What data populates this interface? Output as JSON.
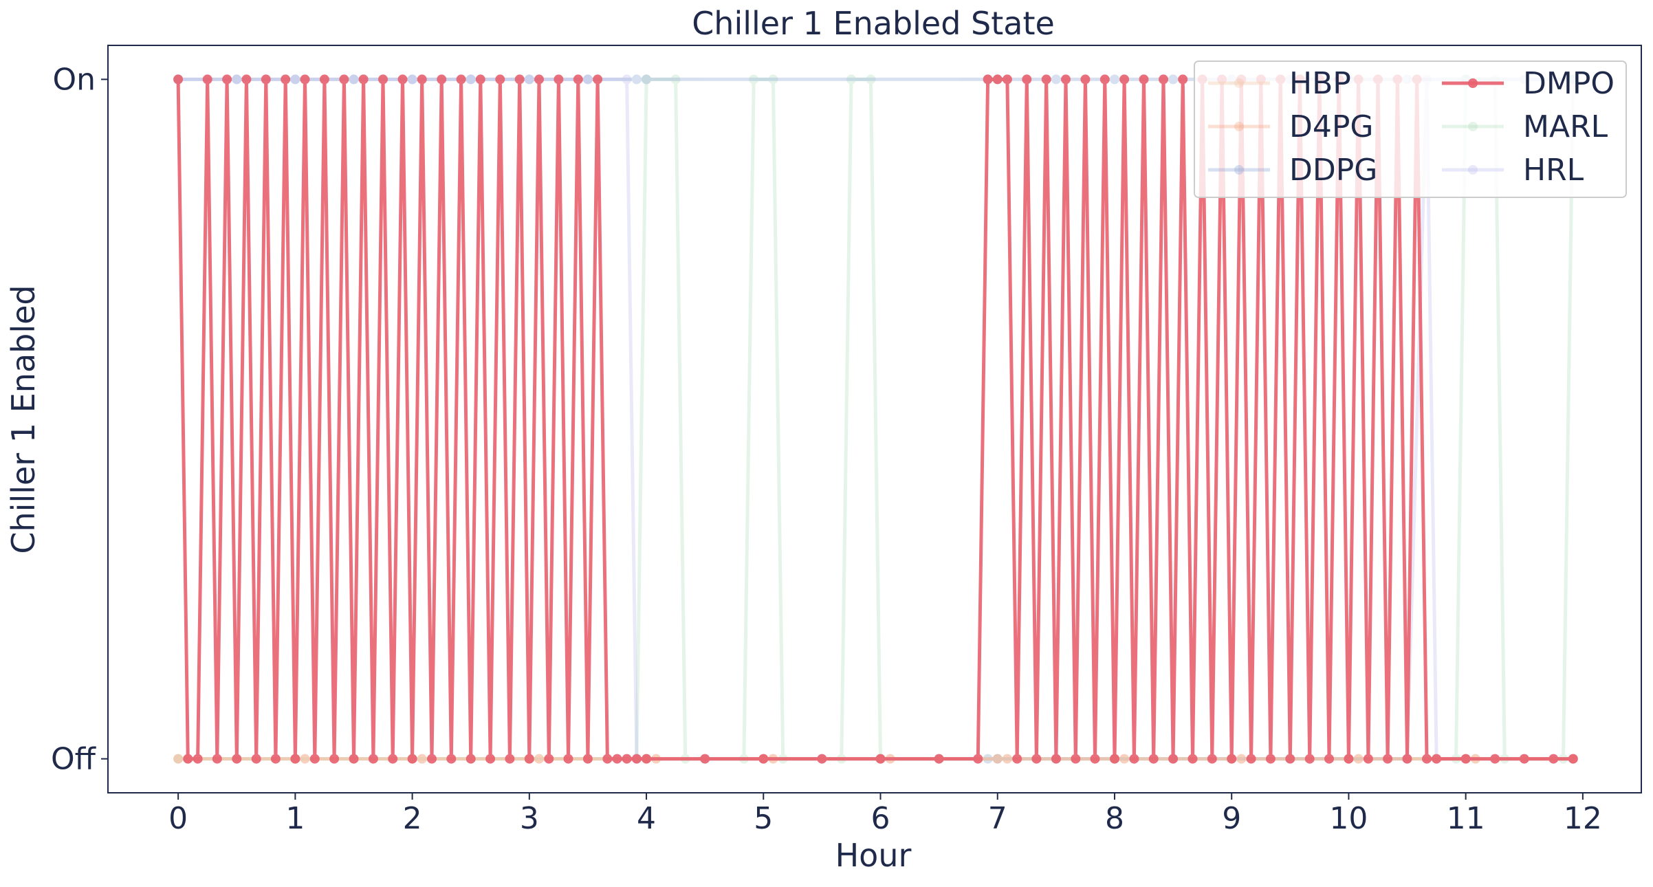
{
  "chart_data": {
    "type": "line",
    "title": "Chiller 1 Enabled State",
    "xlabel": "Hour",
    "ylabel": "Chiller 1 Enabled",
    "xlim": [
      -0.6,
      12.5
    ],
    "ylim": [
      -0.05,
      1.05
    ],
    "xticks": [
      0,
      1,
      2,
      3,
      4,
      5,
      6,
      7,
      8,
      9,
      10,
      11,
      12
    ],
    "yticks": [
      {
        "value": 0,
        "label": "Off"
      },
      {
        "value": 1,
        "label": "On"
      }
    ],
    "grid": false,
    "legend": {
      "placement": "top-right",
      "columns": 2,
      "entries": [
        "HBP",
        "D4PG",
        "DDPG",
        "DMPO",
        "MARL",
        "HRL"
      ]
    },
    "series": [
      {
        "name": "HBP",
        "color": "#f2c6a2",
        "opacity": 0.35,
        "x": [
          0,
          0.083,
          1.0,
          1.083,
          2.0,
          2.083,
          3.0,
          3.083,
          4.0,
          4.083,
          5.0,
          5.083,
          6.0,
          6.083,
          7.0,
          7.083,
          8.0,
          8.083,
          9.0,
          9.083,
          10.0,
          10.083,
          11.0,
          11.083,
          11.917
        ],
        "y": [
          0,
          0,
          0,
          0,
          0,
          0,
          0,
          0,
          0,
          0,
          0,
          0,
          0,
          0,
          0,
          0,
          0,
          0,
          0,
          0,
          0,
          0,
          0,
          0,
          0
        ]
      },
      {
        "name": "D4PG",
        "color": "#f4a582",
        "opacity": 0.35,
        "x": [
          0,
          0.083,
          1.0,
          1.083,
          2.0,
          2.083,
          3.0,
          3.083,
          4.0,
          4.083,
          5.0,
          5.083,
          6.0,
          6.083,
          7.0,
          7.083,
          8.0,
          8.083,
          9.0,
          9.083,
          10.0,
          10.083,
          11.0,
          11.083,
          11.917
        ],
        "y": [
          0,
          0,
          0,
          0,
          0,
          0,
          0,
          0,
          0,
          0,
          0,
          0,
          0,
          0,
          0,
          0,
          0,
          0,
          0,
          0,
          0,
          0,
          0,
          0,
          0
        ]
      },
      {
        "name": "DDPG",
        "color": "#8fa8d6",
        "opacity": 0.35,
        "x": [
          0,
          0.5,
          1.0,
          1.5,
          2.0,
          2.5,
          3.0,
          3.5,
          3.917,
          4.0,
          6.917,
          7.0,
          7.5,
          8.0,
          8.5,
          9.0,
          9.5,
          10.0,
          10.5,
          11.0,
          11.5,
          11.917
        ],
        "y": [
          1,
          1,
          1,
          1,
          1,
          1,
          1,
          1,
          1,
          1,
          1,
          1,
          1,
          1,
          1,
          1,
          1,
          1,
          1,
          1,
          1,
          1
        ]
      },
      {
        "name": "DMPO",
        "color": "#e8606e",
        "opacity": 0.9,
        "x": [
          0,
          0.083,
          0.167,
          0.25,
          0.333,
          0.417,
          0.5,
          0.583,
          0.667,
          0.75,
          0.833,
          0.917,
          1.0,
          1.083,
          1.167,
          1.25,
          1.333,
          1.417,
          1.5,
          1.583,
          1.667,
          1.75,
          1.833,
          1.917,
          2.0,
          2.083,
          2.167,
          2.25,
          2.333,
          2.417,
          2.5,
          2.583,
          2.667,
          2.75,
          2.833,
          2.917,
          3.0,
          3.083,
          3.167,
          3.25,
          3.333,
          3.417,
          3.5,
          3.583,
          3.667,
          3.75,
          3.833,
          3.917,
          4.0,
          4.5,
          5.0,
          5.5,
          6.0,
          6.5,
          6.833,
          6.917,
          7.0,
          7.083,
          7.167,
          7.25,
          7.333,
          7.417,
          7.5,
          7.583,
          7.667,
          7.75,
          7.833,
          7.917,
          8.0,
          8.083,
          8.167,
          8.25,
          8.333,
          8.417,
          8.5,
          8.583,
          8.667,
          8.75,
          8.833,
          8.917,
          9.0,
          9.083,
          9.167,
          9.25,
          9.333,
          9.417,
          9.5,
          9.583,
          9.667,
          9.75,
          9.833,
          9.917,
          10.0,
          10.083,
          10.167,
          10.25,
          10.333,
          10.417,
          10.5,
          10.583,
          10.667,
          10.75,
          11.0,
          11.25,
          11.5,
          11.75,
          11.917
        ],
        "y": [
          1,
          0,
          0,
          1,
          0,
          1,
          0,
          1,
          0,
          1,
          0,
          1,
          0,
          1,
          0,
          1,
          0,
          1,
          0,
          1,
          0,
          1,
          0,
          1,
          0,
          1,
          0,
          1,
          0,
          1,
          0,
          1,
          0,
          1,
          0,
          1,
          0,
          1,
          0,
          1,
          0,
          1,
          0,
          1,
          0,
          0,
          0,
          0,
          0,
          0,
          0,
          0,
          0,
          0,
          0,
          1,
          1,
          1,
          0,
          1,
          0,
          1,
          0,
          1,
          0,
          1,
          0,
          1,
          0,
          1,
          0,
          1,
          0,
          1,
          0,
          1,
          0,
          1,
          0,
          1,
          0,
          1,
          0,
          1,
          0,
          1,
          0,
          1,
          0,
          1,
          0,
          1,
          0,
          1,
          0,
          1,
          0,
          1,
          0,
          1,
          0,
          0,
          0,
          0,
          0,
          0,
          0
        ]
      },
      {
        "name": "MARL",
        "color": "#a8dcb6",
        "opacity": 0.3,
        "x": [
          0,
          0.5,
          1.0,
          1.5,
          2.0,
          2.5,
          3.0,
          3.5,
          3.917,
          4.0,
          4.25,
          4.333,
          4.833,
          4.917,
          5.083,
          5.167,
          5.667,
          5.75,
          5.917,
          6.0,
          6.5,
          6.917,
          7.0,
          7.5,
          8.0,
          8.5,
          9.0,
          9.5,
          10.0,
          10.5,
          10.917,
          11.0,
          11.25,
          11.333,
          11.833,
          11.917
        ],
        "y": [
          0,
          0,
          0,
          0,
          0,
          0,
          0,
          0,
          0,
          1,
          1,
          0,
          0,
          1,
          1,
          0,
          0,
          1,
          1,
          0,
          0,
          0,
          0,
          0,
          0,
          0,
          0,
          0,
          0,
          0,
          0,
          1,
          1,
          0,
          0,
          1
        ]
      },
      {
        "name": "HRL",
        "color": "#b9b5ef",
        "opacity": 0.3,
        "x": [
          0,
          0.5,
          1.0,
          1.5,
          2.0,
          2.5,
          3.0,
          3.5,
          3.833,
          3.917,
          4.5,
          5.0,
          5.5,
          6.0,
          6.5,
          6.917,
          7.0,
          7.5,
          8.0,
          8.5,
          9.0,
          9.5,
          10.0,
          10.5,
          10.667,
          10.75,
          11.0,
          11.5,
          11.917
        ],
        "y": [
          1,
          1,
          1,
          1,
          1,
          1,
          1,
          1,
          1,
          0,
          0,
          0,
          0,
          0,
          0,
          0,
          0,
          0,
          0,
          0,
          0,
          0,
          0,
          0,
          1,
          0,
          0,
          0,
          0
        ]
      }
    ]
  }
}
